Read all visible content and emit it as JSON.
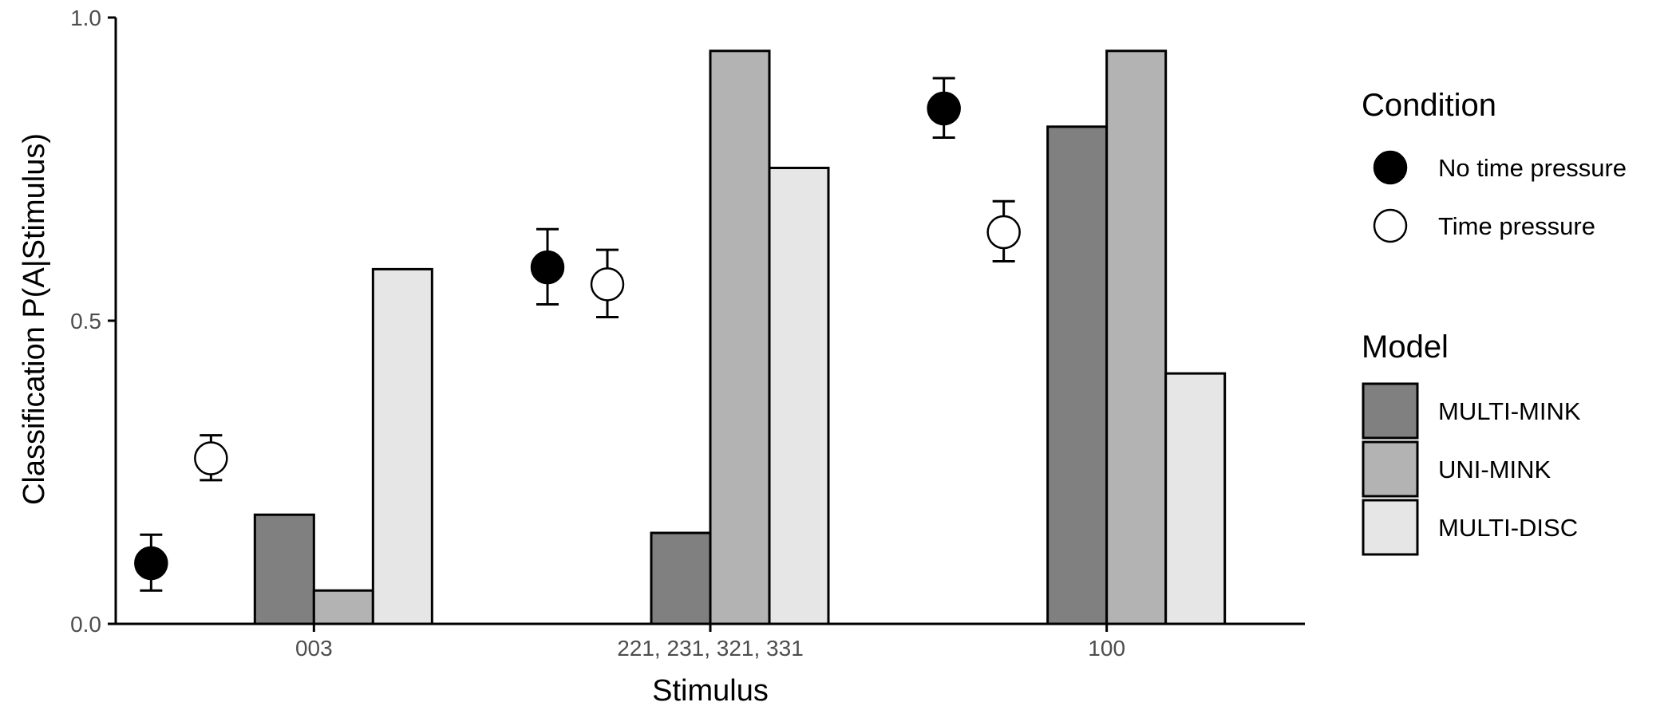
{
  "chart_data": {
    "type": "bar",
    "title": "",
    "xlabel": "Stimulus",
    "ylabel": "Classification P(A|Stimulus)",
    "ylim": [
      0,
      1
    ],
    "yticks": [
      "0.0",
      "0.5",
      "1.0"
    ],
    "categories": [
      "003",
      "221, 231, 321, 331",
      "100"
    ],
    "grid": false,
    "legend_placement": "right",
    "bar_legend_title": "Model",
    "point_legend_title": "Condition",
    "series": [
      {
        "name": "MULTI-MINK",
        "color": "#808080",
        "values": [
          0.18,
          0.15,
          0.82
        ]
      },
      {
        "name": "UNI-MINK",
        "color": "#b3b3b3",
        "values": [
          0.055,
          0.945,
          0.945
        ]
      },
      {
        "name": "MULTI-DISC",
        "color": "#e6e6e6",
        "values": [
          0.585,
          0.752,
          0.413
        ]
      }
    ],
    "points": [
      {
        "name": "No time pressure",
        "fill": "#000000",
        "values": [
          0.1,
          0.588,
          0.85
        ],
        "lower": [
          0.055,
          0.527,
          0.802
        ],
        "upper": [
          0.147,
          0.651,
          0.9
        ]
      },
      {
        "name": "Time pressure",
        "fill": "#ffffff",
        "values": [
          0.273,
          0.56,
          0.646
        ],
        "lower": [
          0.237,
          0.506,
          0.598
        ],
        "upper": [
          0.311,
          0.617,
          0.697
        ]
      }
    ]
  }
}
